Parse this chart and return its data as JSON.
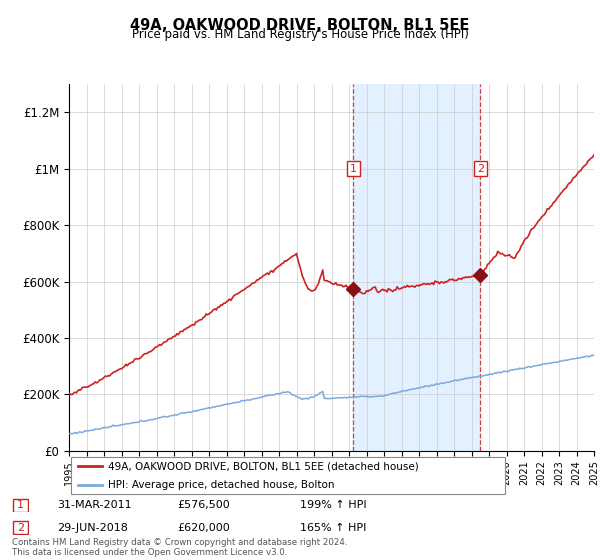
{
  "title": "49A, OAKWOOD DRIVE, BOLTON, BL1 5EE",
  "subtitle": "Price paid vs. HM Land Registry's House Price Index (HPI)",
  "legend_line1": "49A, OAKWOOD DRIVE, BOLTON, BL1 5EE (detached house)",
  "legend_line2": "HPI: Average price, detached house, Bolton",
  "annotation1_date": "31-MAR-2011",
  "annotation1_price": "£576,500",
  "annotation1_hpi": "199% ↑ HPI",
  "annotation2_date": "29-JUN-2018",
  "annotation2_price": "£620,000",
  "annotation2_hpi": "165% ↑ HPI",
  "footer": "Contains HM Land Registry data © Crown copyright and database right 2024.\nThis data is licensed under the Open Government Licence v3.0.",
  "red_color": "#cc2222",
  "blue_color": "#7aaadd",
  "shade_color": "#ddeeff",
  "annotation_box_color": "#cc2222",
  "ylim": [
    0,
    1300000
  ],
  "yticks": [
    0,
    200000,
    400000,
    600000,
    800000,
    1000000,
    1200000
  ],
  "ytick_labels": [
    "£0",
    "£200K",
    "£400K",
    "£600K",
    "£800K",
    "£1M",
    "£1.2M"
  ],
  "xstart": 1995,
  "xend": 2025,
  "sale1_year": 2011.25,
  "sale1_price": 576500,
  "sale2_year": 2018.5,
  "sale2_price": 620000
}
